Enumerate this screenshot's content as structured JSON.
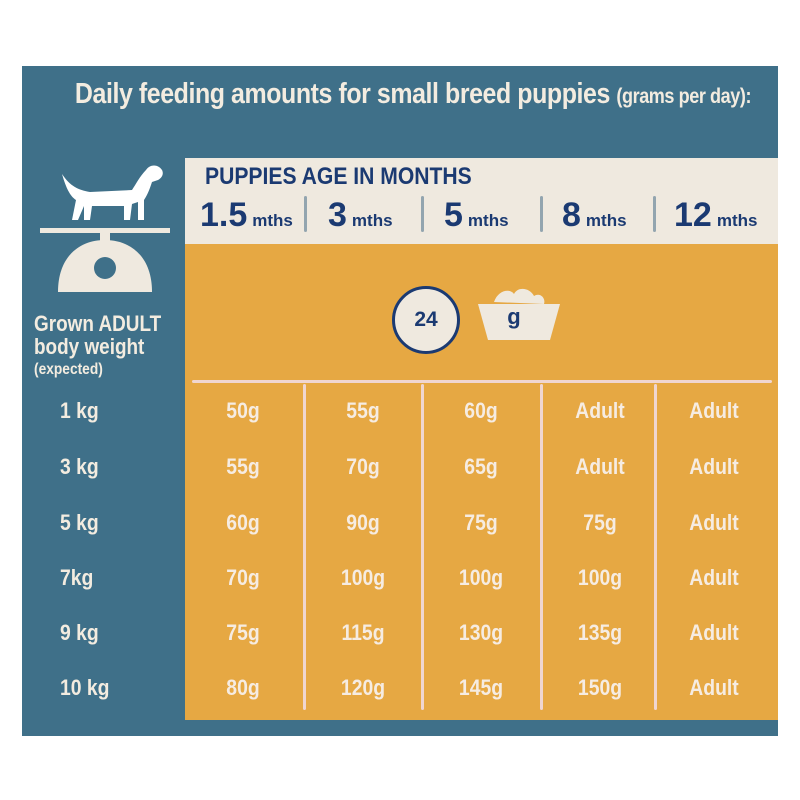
{
  "title": {
    "main": "Daily feeding amounts for small breed puppies",
    "sub": "(grams per day):"
  },
  "header": {
    "title": "PUPPIES AGE IN MONTHS",
    "ages": [
      {
        "num": "1.5",
        "unit": "mths"
      },
      {
        "num": "3",
        "unit": "mths"
      },
      {
        "num": "5",
        "unit": "mths"
      },
      {
        "num": "8",
        "unit": "mths"
      },
      {
        "num": "12",
        "unit": "mths"
      }
    ]
  },
  "left": {
    "weight_line1": "Grown ADULT",
    "weight_line2": "body weight",
    "weight_line3": "(expected)"
  },
  "legend": {
    "clock_value": "24",
    "bowl_unit": "g"
  },
  "rows": [
    {
      "label": "1 kg",
      "values": [
        "50g",
        "55g",
        "60g",
        "Adult",
        "Adult"
      ]
    },
    {
      "label": "3 kg",
      "values": [
        "55g",
        "70g",
        "65g",
        "Adult",
        "Adult"
      ]
    },
    {
      "label": "5 kg",
      "values": [
        "60g",
        "90g",
        "75g",
        "75g",
        "Adult"
      ]
    },
    {
      "label": "7kg",
      "values": [
        "70g",
        "100g",
        "100g",
        "100g",
        "Adult"
      ]
    },
    {
      "label": "9 kg",
      "values": [
        "75g",
        "115g",
        "130g",
        "135g",
        "Adult"
      ]
    },
    {
      "label": "10 kg",
      "values": [
        "80g",
        "120g",
        "145g",
        "150g",
        "Adult"
      ]
    }
  ],
  "colors": {
    "teal": "#3f7089",
    "cream": "#efe9df",
    "orange": "#e6a843",
    "navy": "#1b3a72"
  }
}
